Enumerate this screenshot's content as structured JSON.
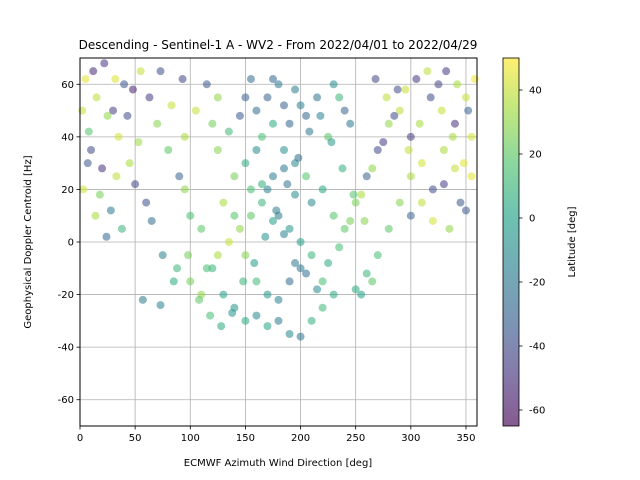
{
  "chart_data": {
    "type": "scatter",
    "title": "Descending - Sentinel-1 A - WV2 - From 2022/04/01 to 2022/04/29",
    "xlabel": "ECMWF Azimuth Wind Direction [deg]",
    "ylabel": "Geophysical Doppler Centroid [Hz]",
    "xlim": [
      0,
      360
    ],
    "ylim": [
      -70,
      70
    ],
    "xticks": [
      0,
      50,
      100,
      150,
      200,
      250,
      300,
      350
    ],
    "yticks": [
      -60,
      -40,
      -20,
      0,
      20,
      40,
      60
    ],
    "grid": true,
    "colorbar": {
      "label": "Latitude [deg]",
      "range": [
        -65,
        50
      ],
      "ticks": [
        -60,
        -40,
        -20,
        0,
        20,
        40
      ],
      "colormap": "viridis"
    },
    "points": [
      [
        5,
        62,
        45
      ],
      [
        15,
        55,
        38
      ],
      [
        25,
        48,
        30
      ],
      [
        35,
        40,
        42
      ],
      [
        45,
        30,
        35
      ],
      [
        10,
        35,
        -40
      ],
      [
        20,
        28,
        -50
      ],
      [
        30,
        50,
        -45
      ],
      [
        40,
        60,
        -35
      ],
      [
        50,
        22,
        -42
      ],
      [
        60,
        15,
        -38
      ],
      [
        70,
        45,
        28
      ],
      [
        80,
        35,
        20
      ],
      [
        90,
        25,
        -30
      ],
      [
        55,
        65,
        40
      ],
      [
        8,
        42,
        18
      ],
      [
        18,
        18,
        25
      ],
      [
        28,
        12,
        -20
      ],
      [
        38,
        5,
        10
      ],
      [
        48,
        58,
        -55
      ],
      [
        65,
        8,
        -25
      ],
      [
        75,
        -5,
        -15
      ],
      [
        85,
        -15,
        5
      ],
      [
        95,
        20,
        30
      ],
      [
        100,
        10,
        15
      ],
      [
        110,
        5,
        20
      ],
      [
        120,
        -10,
        10
      ],
      [
        130,
        15,
        35
      ],
      [
        140,
        25,
        25
      ],
      [
        150,
        30,
        5
      ],
      [
        160,
        35,
        -10
      ],
      [
        170,
        20,
        -15
      ],
      [
        180,
        10,
        -20
      ],
      [
        190,
        5,
        -5
      ],
      [
        200,
        0,
        0
      ],
      [
        210,
        -5,
        10
      ],
      [
        220,
        -15,
        15
      ],
      [
        230,
        -20,
        5
      ],
      [
        240,
        5,
        20
      ],
      [
        250,
        15,
        25
      ],
      [
        260,
        25,
        -30
      ],
      [
        270,
        35,
        -40
      ],
      [
        280,
        45,
        30
      ],
      [
        290,
        50,
        38
      ],
      [
        300,
        40,
        -45
      ],
      [
        310,
        30,
        42
      ],
      [
        320,
        20,
        -38
      ],
      [
        330,
        35,
        35
      ],
      [
        340,
        45,
        -50
      ],
      [
        350,
        55,
        40
      ],
      [
        355,
        25,
        45
      ],
      [
        345,
        15,
        -35
      ],
      [
        335,
        5,
        30
      ],
      [
        325,
        60,
        -42
      ],
      [
        315,
        65,
        38
      ],
      [
        130,
        -20,
        0
      ],
      [
        140,
        -25,
        -5
      ],
      [
        150,
        -30,
        5
      ],
      [
        160,
        -28,
        -12
      ],
      [
        170,
        -32,
        2
      ],
      [
        180,
        -30,
        -18
      ],
      [
        190,
        -35,
        -10
      ],
      [
        200,
        -36,
        -22
      ],
      [
        210,
        -30,
        8
      ],
      [
        220,
        -25,
        12
      ],
      [
        160,
        50,
        -25
      ],
      [
        170,
        55,
        -30
      ],
      [
        180,
        60,
        -20
      ],
      [
        190,
        45,
        -28
      ],
      [
        200,
        52,
        -15
      ],
      [
        165,
        40,
        15
      ],
      [
        175,
        45,
        5
      ],
      [
        185,
        35,
        -8
      ],
      [
        195,
        30,
        -12
      ],
      [
        205,
        25,
        18
      ],
      [
        120,
        45,
        25
      ],
      [
        125,
        55,
        30
      ],
      [
        115,
        60,
        -35
      ],
      [
        105,
        50,
        40
      ],
      [
        95,
        40,
        35
      ],
      [
        240,
        50,
        -30
      ],
      [
        245,
        45,
        -20
      ],
      [
        235,
        55,
        10
      ],
      [
        225,
        40,
        20
      ],
      [
        230,
        60,
        -10
      ],
      [
        100,
        -15,
        25
      ],
      [
        110,
        -20,
        30
      ],
      [
        115,
        -10,
        15
      ],
      [
        125,
        -5,
        35
      ],
      [
        135,
        0,
        40
      ],
      [
        145,
        5,
        30
      ],
      [
        155,
        10,
        20
      ],
      [
        165,
        15,
        10
      ],
      [
        175,
        8,
        0
      ],
      [
        185,
        3,
        -15
      ],
      [
        195,
        -8,
        -20
      ],
      [
        205,
        -12,
        -25
      ],
      [
        215,
        -18,
        -10
      ],
      [
        225,
        -8,
        5
      ],
      [
        235,
        -2,
        15
      ],
      [
        245,
        8,
        25
      ],
      [
        255,
        18,
        35
      ],
      [
        265,
        28,
        30
      ],
      [
        275,
        38,
        -45
      ],
      [
        285,
        48,
        -40
      ],
      [
        295,
        58,
        40
      ],
      [
        305,
        62,
        -48
      ],
      [
        300,
        25,
        35
      ],
      [
        290,
        15,
        28
      ],
      [
        280,
        5,
        20
      ],
      [
        270,
        -5,
        15
      ],
      [
        260,
        -12,
        10
      ],
      [
        250,
        -18,
        5
      ],
      [
        255,
        -20,
        0
      ],
      [
        265,
        -15,
        20
      ],
      [
        12,
        65,
        -52
      ],
      [
        22,
        68,
        -48
      ],
      [
        32,
        62,
        44
      ],
      [
        2,
        50,
        40
      ],
      [
        3,
        20,
        42
      ],
      [
        7,
        30,
        -35
      ],
      [
        14,
        10,
        35
      ],
      [
        24,
        2,
        -28
      ],
      [
        33,
        25,
        38
      ],
      [
        43,
        48,
        -40
      ],
      [
        53,
        38,
        32
      ],
      [
        63,
        55,
        -45
      ],
      [
        73,
        65,
        -38
      ],
      [
        83,
        52,
        40
      ],
      [
        93,
        62,
        -42
      ],
      [
        57,
        -22,
        -20
      ],
      [
        73,
        -24,
        -15
      ],
      [
        88,
        -10,
        10
      ],
      [
        98,
        -5,
        25
      ],
      [
        108,
        -22,
        20
      ],
      [
        118,
        -28,
        15
      ],
      [
        128,
        -32,
        5
      ],
      [
        138,
        -27,
        -5
      ],
      [
        148,
        -15,
        10
      ],
      [
        158,
        -8,
        -2
      ],
      [
        168,
        2,
        -8
      ],
      [
        178,
        12,
        -18
      ],
      [
        188,
        22,
        -22
      ],
      [
        198,
        32,
        -25
      ],
      [
        208,
        42,
        -20
      ],
      [
        218,
        48,
        -15
      ],
      [
        228,
        38,
        -5
      ],
      [
        238,
        28,
        8
      ],
      [
        248,
        18,
        18
      ],
      [
        258,
        8,
        28
      ],
      [
        268,
        62,
        -42
      ],
      [
        278,
        55,
        38
      ],
      [
        288,
        58,
        -38
      ],
      [
        298,
        35,
        40
      ],
      [
        308,
        45,
        35
      ],
      [
        318,
        55,
        -40
      ],
      [
        328,
        50,
        40
      ],
      [
        338,
        40,
        35
      ],
      [
        348,
        30,
        45
      ],
      [
        358,
        62,
        48
      ],
      [
        300,
        10,
        -30
      ],
      [
        310,
        15,
        38
      ],
      [
        320,
        8,
        42
      ],
      [
        330,
        22,
        -45
      ],
      [
        340,
        28,
        40
      ],
      [
        350,
        12,
        -35
      ],
      [
        355,
        40,
        42
      ],
      [
        352,
        50,
        -30
      ],
      [
        342,
        60,
        35
      ],
      [
        332,
        65,
        -48
      ],
      [
        150,
        55,
        -30
      ],
      [
        155,
        62,
        -25
      ],
      [
        145,
        48,
        -35
      ],
      [
        135,
        42,
        12
      ],
      [
        125,
        35,
        28
      ],
      [
        175,
        62,
        -28
      ],
      [
        185,
        52,
        -32
      ],
      [
        195,
        58,
        -18
      ],
      [
        205,
        48,
        -28
      ],
      [
        215,
        55,
        -22
      ],
      [
        140,
        10,
        18
      ],
      [
        150,
        -5,
        28
      ],
      [
        160,
        -15,
        12
      ],
      [
        170,
        -20,
        -5
      ],
      [
        180,
        -22,
        -15
      ],
      [
        190,
        -15,
        -25
      ],
      [
        200,
        -10,
        -20
      ],
      [
        210,
        15,
        -12
      ],
      [
        220,
        20,
        2
      ],
      [
        230,
        10,
        18
      ],
      [
        175,
        25,
        -18
      ],
      [
        185,
        28,
        -20
      ],
      [
        195,
        18,
        -10
      ],
      [
        165,
        22,
        8
      ],
      [
        155,
        20,
        15
      ]
    ]
  }
}
